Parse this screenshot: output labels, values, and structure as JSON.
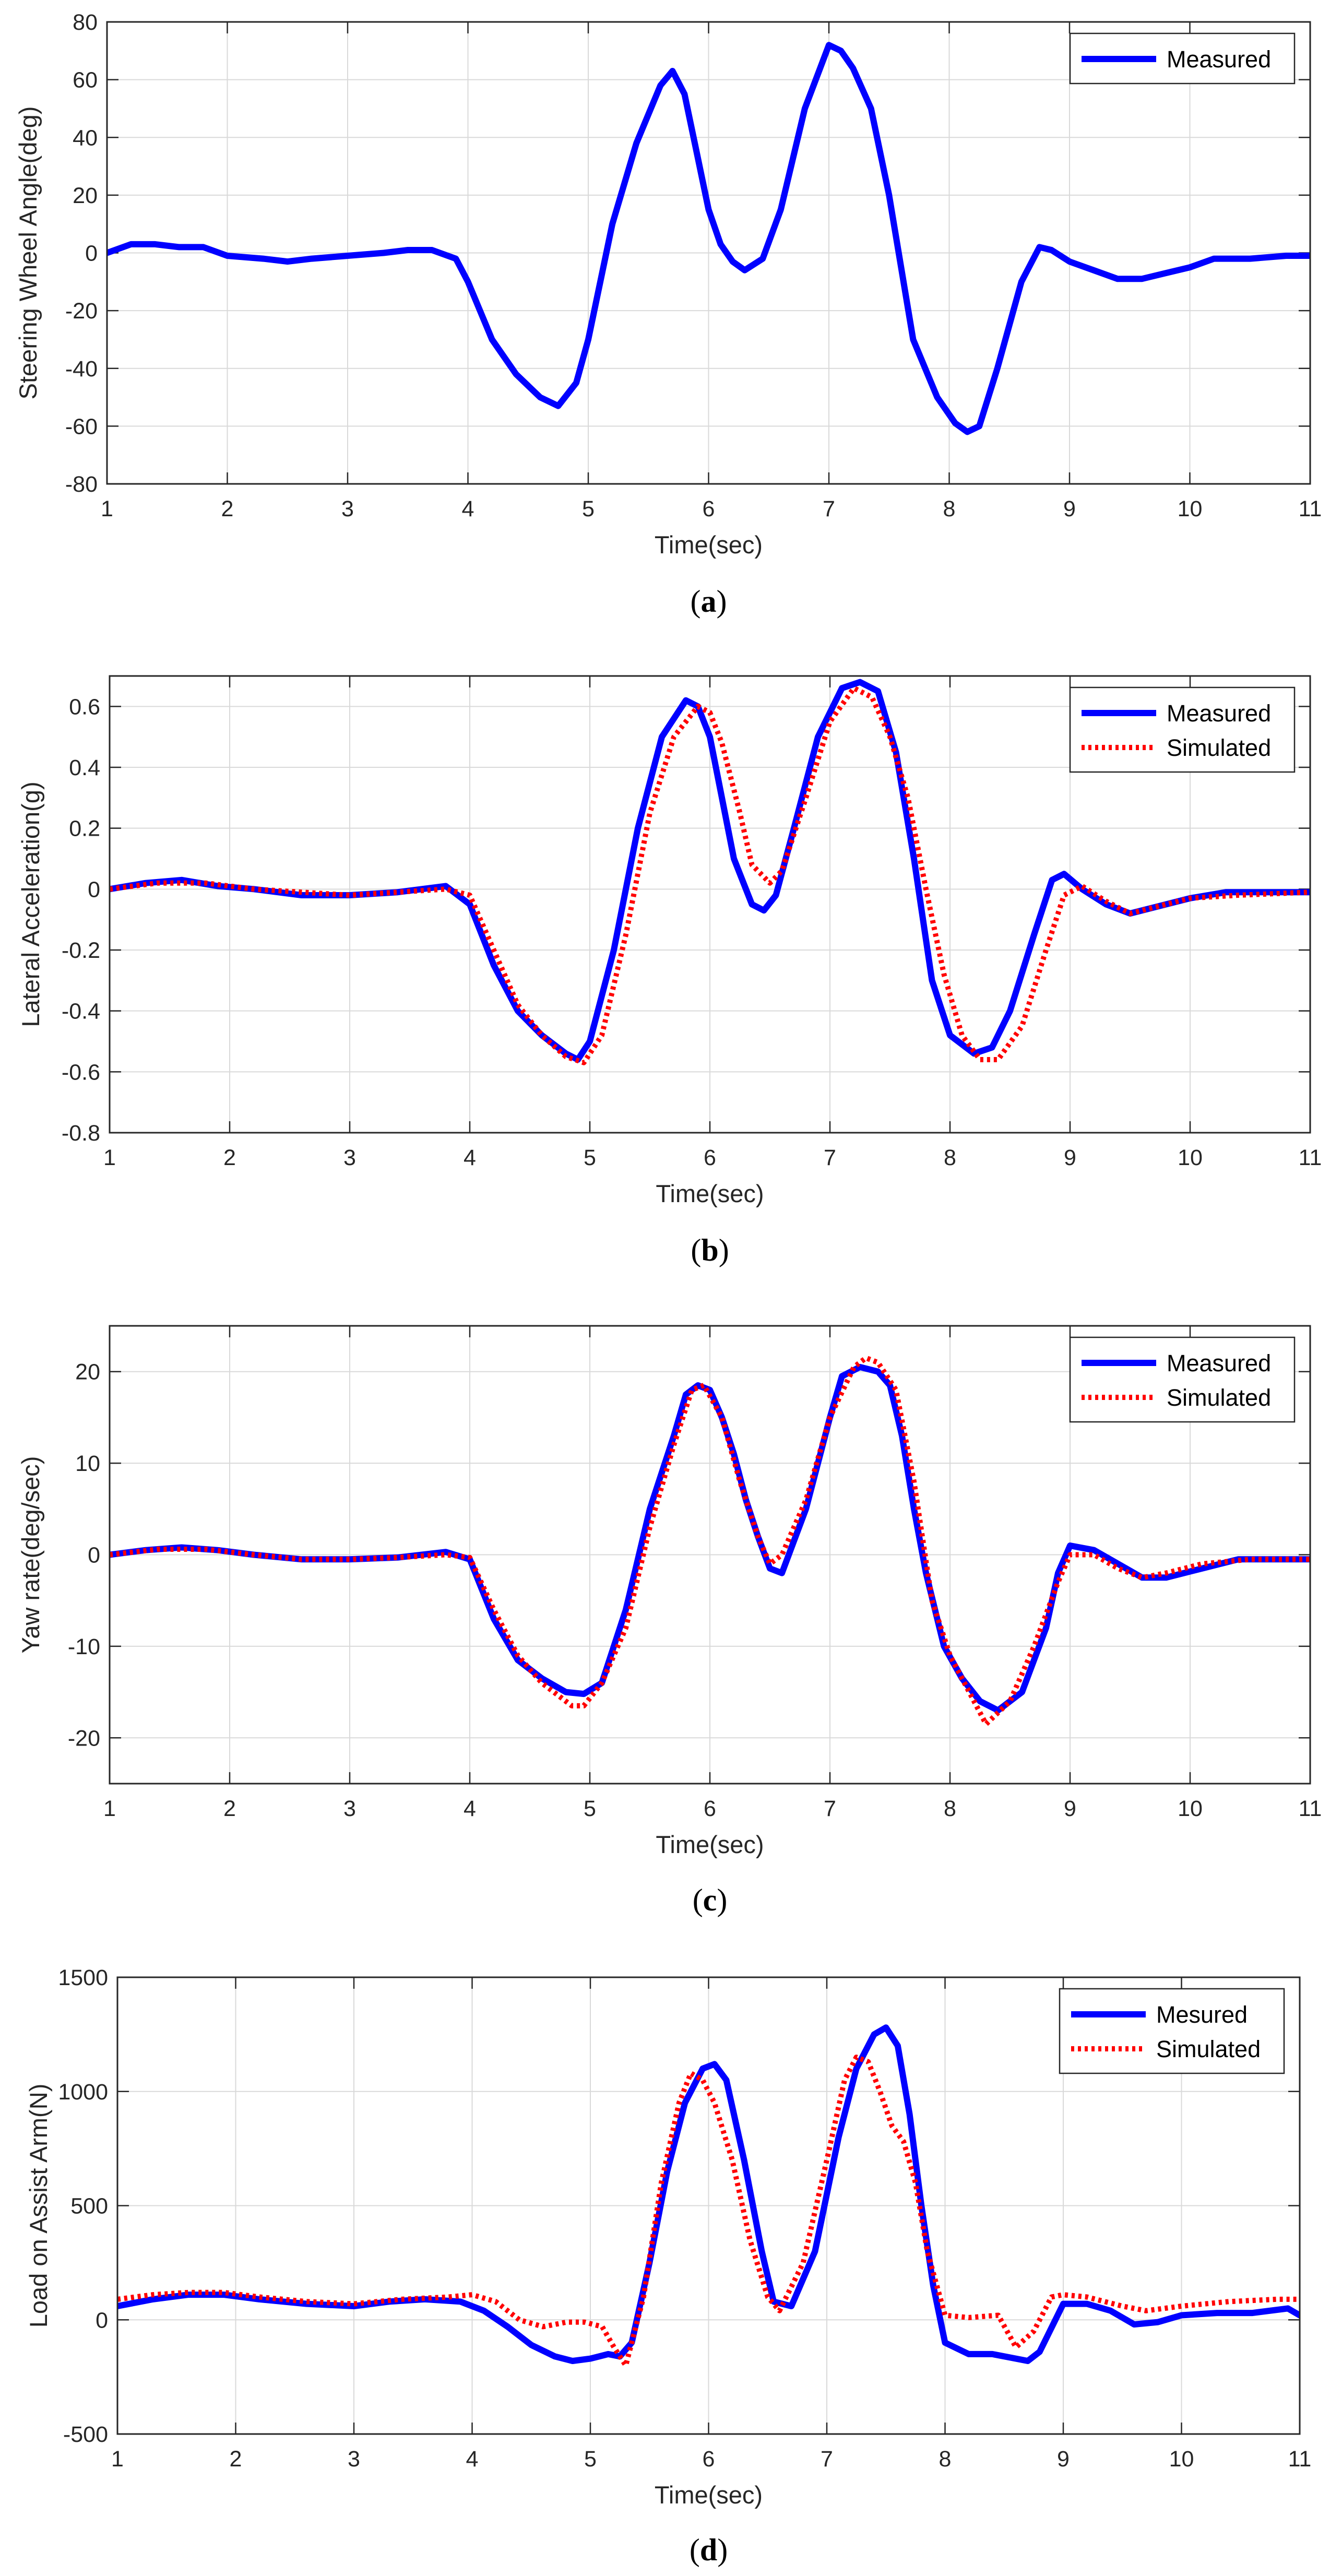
{
  "figure": {
    "panels": [
      "a",
      "b",
      "c",
      "d"
    ],
    "colors": {
      "measured": "#0000ff",
      "simulated": "#ff0000",
      "grid": "#d9d9d9",
      "axis": "#262626"
    }
  },
  "chart_data": [
    {
      "id": "a",
      "caption": "a",
      "type": "line",
      "xlabel": "Time(sec)",
      "ylabel": "Steering Wheel Angle(deg)",
      "xlim": [
        1,
        11
      ],
      "ylim": [
        -80,
        80
      ],
      "xticks": [
        1,
        2,
        3,
        4,
        5,
        6,
        7,
        8,
        9,
        10,
        11
      ],
      "yticks": [
        -80,
        -60,
        -40,
        -20,
        0,
        20,
        40,
        60,
        80
      ],
      "grid": true,
      "legend": "top-right",
      "series": [
        {
          "name": "Measured",
          "color": "#0000ff",
          "style": "solid",
          "x": [
            1.0,
            1.2,
            1.4,
            1.6,
            1.8,
            2.0,
            2.3,
            2.5,
            2.7,
            3.0,
            3.3,
            3.5,
            3.7,
            3.9,
            4.0,
            4.2,
            4.4,
            4.6,
            4.75,
            4.9,
            5.0,
            5.2,
            5.4,
            5.6,
            5.7,
            5.8,
            5.9,
            6.0,
            6.1,
            6.2,
            6.3,
            6.45,
            6.6,
            6.8,
            7.0,
            7.1,
            7.2,
            7.35,
            7.5,
            7.7,
            7.9,
            8.05,
            8.15,
            8.25,
            8.4,
            8.6,
            8.75,
            8.85,
            9.0,
            9.2,
            9.4,
            9.6,
            9.8,
            10.0,
            10.2,
            10.5,
            10.8,
            11.0
          ],
          "y": [
            0,
            3,
            3,
            2,
            2,
            -1,
            -2,
            -3,
            -2,
            -1,
            0,
            1,
            1,
            -2,
            -10,
            -30,
            -42,
            -50,
            -53,
            -45,
            -30,
            10,
            38,
            58,
            63,
            55,
            35,
            15,
            3,
            -3,
            -6,
            -2,
            15,
            50,
            72,
            70,
            64,
            50,
            20,
            -30,
            -50,
            -59,
            -62,
            -60,
            -40,
            -10,
            2,
            1,
            -3,
            -6,
            -9,
            -9,
            -7,
            -5,
            -2,
            -2,
            -1,
            -1
          ]
        }
      ]
    },
    {
      "id": "b",
      "caption": "b",
      "type": "line",
      "xlabel": "Time(sec)",
      "ylabel": "Lateral Acceleration(g)",
      "xlim": [
        1,
        11
      ],
      "ylim": [
        -0.8,
        0.7
      ],
      "xticks": [
        1,
        2,
        3,
        4,
        5,
        6,
        7,
        8,
        9,
        10,
        11
      ],
      "yticks": [
        -0.8,
        -0.6,
        -0.4,
        -0.2,
        0,
        0.2,
        0.4,
        0.6
      ],
      "grid": true,
      "legend": "top-right",
      "series": [
        {
          "name": "Measured",
          "color": "#0000ff",
          "style": "solid",
          "x": [
            1.0,
            1.3,
            1.6,
            1.9,
            2.2,
            2.6,
            3.0,
            3.4,
            3.8,
            4.0,
            4.2,
            4.4,
            4.6,
            4.8,
            4.9,
            5.0,
            5.2,
            5.4,
            5.6,
            5.8,
            5.9,
            6.0,
            6.1,
            6.2,
            6.35,
            6.45,
            6.55,
            6.7,
            6.9,
            7.1,
            7.25,
            7.4,
            7.55,
            7.7,
            7.85,
            8.0,
            8.2,
            8.35,
            8.5,
            8.7,
            8.85,
            8.95,
            9.1,
            9.3,
            9.5,
            9.7,
            10.0,
            10.3,
            10.6,
            11.0
          ],
          "y": [
            0,
            0.02,
            0.03,
            0.01,
            0,
            -0.02,
            -0.02,
            -0.01,
            0.01,
            -0.05,
            -0.25,
            -0.4,
            -0.48,
            -0.54,
            -0.56,
            -0.5,
            -0.2,
            0.2,
            0.5,
            0.62,
            0.6,
            0.5,
            0.3,
            0.1,
            -0.05,
            -0.07,
            -0.02,
            0.2,
            0.5,
            0.66,
            0.68,
            0.65,
            0.45,
            0.1,
            -0.3,
            -0.48,
            -0.54,
            -0.52,
            -0.4,
            -0.15,
            0.03,
            0.05,
            0,
            -0.05,
            -0.08,
            -0.06,
            -0.03,
            -0.01,
            -0.01,
            -0.01
          ]
        },
        {
          "name": "Simulated",
          "color": "#ff0000",
          "style": "dotted",
          "x": [
            1.0,
            1.4,
            1.8,
            2.2,
            2.6,
            3.0,
            3.4,
            3.8,
            4.0,
            4.2,
            4.4,
            4.6,
            4.8,
            4.95,
            5.1,
            5.3,
            5.5,
            5.7,
            5.9,
            6.0,
            6.1,
            6.25,
            6.35,
            6.5,
            6.6,
            6.8,
            7.0,
            7.2,
            7.35,
            7.5,
            7.65,
            7.8,
            7.95,
            8.1,
            8.25,
            8.4,
            8.6,
            8.8,
            8.95,
            9.1,
            9.3,
            9.5,
            9.7,
            10.0,
            10.4,
            11.0
          ],
          "y": [
            0,
            0.02,
            0.02,
            0,
            -0.01,
            -0.02,
            -0.01,
            0,
            -0.02,
            -0.2,
            -0.38,
            -0.48,
            -0.55,
            -0.57,
            -0.48,
            -0.15,
            0.25,
            0.5,
            0.6,
            0.58,
            0.48,
            0.25,
            0.08,
            0.02,
            0.06,
            0.3,
            0.55,
            0.66,
            0.63,
            0.5,
            0.3,
            0,
            -0.28,
            -0.48,
            -0.56,
            -0.56,
            -0.45,
            -0.2,
            -0.02,
            0.01,
            -0.04,
            -0.08,
            -0.06,
            -0.03,
            -0.02,
            -0.01
          ]
        }
      ]
    },
    {
      "id": "c",
      "caption": "c",
      "type": "line",
      "xlabel": "Time(sec)",
      "ylabel": "Yaw rate(deg/sec)",
      "xlim": [
        1,
        11
      ],
      "ylim": [
        -25,
        25
      ],
      "xticks": [
        1,
        2,
        3,
        4,
        5,
        6,
        7,
        8,
        9,
        10,
        11
      ],
      "yticks": [
        -20,
        -10,
        0,
        10,
        20
      ],
      "grid": true,
      "legend": "top-right",
      "series": [
        {
          "name": "Measured",
          "color": "#0000ff",
          "style": "solid",
          "x": [
            1.0,
            1.3,
            1.6,
            1.9,
            2.2,
            2.6,
            3.0,
            3.4,
            3.8,
            4.0,
            4.2,
            4.4,
            4.6,
            4.8,
            4.95,
            5.1,
            5.3,
            5.5,
            5.7,
            5.8,
            5.9,
            6.0,
            6.1,
            6.2,
            6.3,
            6.4,
            6.5,
            6.6,
            6.8,
            7.0,
            7.1,
            7.25,
            7.4,
            7.5,
            7.6,
            7.7,
            7.8,
            7.95,
            8.1,
            8.25,
            8.4,
            8.6,
            8.8,
            8.9,
            9.0,
            9.2,
            9.4,
            9.6,
            9.8,
            10.1,
            10.4,
            10.7,
            11.0
          ],
          "y": [
            0,
            0.5,
            0.8,
            0.5,
            0,
            -0.5,
            -0.5,
            -0.3,
            0.3,
            -0.5,
            -7,
            -11.5,
            -13.5,
            -15,
            -15.2,
            -14,
            -6,
            5,
            13,
            17.5,
            18.5,
            18,
            15,
            11,
            6,
            2,
            -1.5,
            -2,
            5,
            15,
            19.5,
            20.5,
            20,
            18.5,
            13,
            5,
            -2,
            -10,
            -13.5,
            -16,
            -17,
            -15,
            -8,
            -2,
            1,
            0.5,
            -1,
            -2.5,
            -2.5,
            -1.5,
            -0.5,
            -0.5,
            -0.5
          ]
        },
        {
          "name": "Simulated",
          "color": "#ff0000",
          "style": "dotted",
          "x": [
            1.0,
            1.4,
            1.8,
            2.2,
            2.6,
            3.0,
            3.4,
            3.8,
            4.0,
            4.2,
            4.4,
            4.6,
            4.85,
            4.95,
            5.1,
            5.3,
            5.5,
            5.7,
            5.85,
            5.95,
            6.1,
            6.25,
            6.4,
            6.5,
            6.6,
            6.8,
            7.0,
            7.2,
            7.3,
            7.4,
            7.55,
            7.7,
            7.85,
            8.0,
            8.2,
            8.3,
            8.5,
            8.7,
            8.9,
            9.0,
            9.2,
            9.4,
            9.6,
            9.8,
            10.1,
            10.5,
            11.0
          ],
          "y": [
            0,
            0.6,
            0.6,
            0,
            -0.5,
            -0.5,
            -0.3,
            0,
            -0.3,
            -6,
            -11,
            -14,
            -16.5,
            -16.5,
            -14,
            -8,
            3,
            12,
            18,
            18.5,
            15,
            8,
            2,
            -1,
            0,
            6,
            15,
            20.5,
            21.5,
            21,
            18,
            8,
            -5,
            -11,
            -16,
            -18.5,
            -16,
            -10,
            -3,
            0,
            0,
            -1.5,
            -2.5,
            -2,
            -1,
            -0.5,
            -0.5
          ]
        }
      ]
    },
    {
      "id": "d",
      "caption": "d",
      "type": "line",
      "xlabel": "Time(sec)",
      "ylabel": "Load on Assist Arm(N)",
      "xlim": [
        1,
        11
      ],
      "ylim": [
        -500,
        1500
      ],
      "xticks": [
        1,
        2,
        3,
        4,
        5,
        6,
        7,
        8,
        9,
        10,
        11
      ],
      "yticks": [
        -500,
        0,
        500,
        1000,
        1500
      ],
      "grid": true,
      "legend": "top-right",
      "series": [
        {
          "name": "Mesured",
          "color": "#0000ff",
          "style": "solid",
          "x": [
            1.0,
            1.3,
            1.6,
            1.9,
            2.2,
            2.6,
            3.0,
            3.3,
            3.6,
            3.9,
            4.1,
            4.3,
            4.5,
            4.7,
            4.85,
            5.0,
            5.15,
            5.25,
            5.35,
            5.5,
            5.65,
            5.8,
            5.95,
            6.05,
            6.15,
            6.3,
            6.45,
            6.55,
            6.7,
            6.9,
            7.1,
            7.25,
            7.4,
            7.5,
            7.6,
            7.7,
            7.8,
            7.9,
            8.0,
            8.2,
            8.4,
            8.6,
            8.7,
            8.8,
            9.0,
            9.2,
            9.4,
            9.6,
            9.8,
            10.0,
            10.3,
            10.6,
            10.9,
            11.0
          ],
          "y": [
            60,
            90,
            110,
            110,
            90,
            70,
            60,
            80,
            90,
            80,
            40,
            -30,
            -110,
            -160,
            -180,
            -170,
            -150,
            -160,
            -100,
            250,
            650,
            950,
            1100,
            1120,
            1050,
            700,
            300,
            80,
            60,
            300,
            800,
            1100,
            1250,
            1280,
            1200,
            900,
            500,
            150,
            -100,
            -150,
            -150,
            -170,
            -180,
            -140,
            70,
            70,
            40,
            -20,
            -10,
            20,
            30,
            30,
            50,
            20
          ]
        },
        {
          "name": "Simulated",
          "color": "#ff0000",
          "style": "dotted",
          "x": [
            1.0,
            1.3,
            1.6,
            1.9,
            2.2,
            2.6,
            3.0,
            3.4,
            3.8,
            4.0,
            4.2,
            4.4,
            4.6,
            4.8,
            4.95,
            5.1,
            5.2,
            5.3,
            5.45,
            5.6,
            5.75,
            5.85,
            5.95,
            6.05,
            6.2,
            6.35,
            6.5,
            6.6,
            6.8,
            7.0,
            7.15,
            7.25,
            7.35,
            7.45,
            7.55,
            7.65,
            7.75,
            7.85,
            8.0,
            8.2,
            8.45,
            8.6,
            8.75,
            8.9,
            9.0,
            9.2,
            9.5,
            9.7,
            10.0,
            10.4,
            10.8,
            11.0
          ],
          "y": [
            90,
            110,
            120,
            120,
            100,
            80,
            70,
            90,
            100,
            110,
            80,
            0,
            -30,
            -10,
            -10,
            -30,
            -120,
            -200,
            100,
            600,
            950,
            1080,
            1050,
            950,
            700,
            350,
            100,
            40,
            250,
            700,
            1050,
            1150,
            1130,
            1000,
            850,
            780,
            600,
            300,
            20,
            10,
            20,
            -120,
            -50,
            100,
            110,
            100,
            60,
            40,
            60,
            80,
            90,
            90
          ]
        }
      ]
    }
  ]
}
